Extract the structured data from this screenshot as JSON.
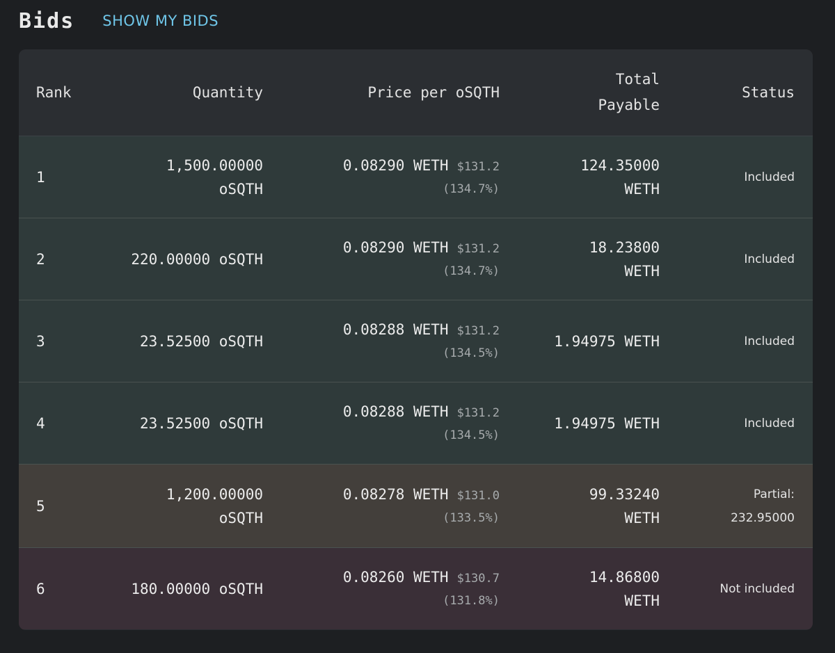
{
  "header": {
    "title": "Bids",
    "show_my_bids": "SHOW MY BIDS"
  },
  "columns": {
    "rank": "Rank",
    "quantity": "Quantity",
    "price": "Price per oSQTH",
    "total_line1": "Total",
    "total_line2": "Payable",
    "status": "Status"
  },
  "rows": [
    {
      "rank": "1",
      "qty_line1": "1,500.00000",
      "qty_line2": "oSQTH",
      "price_weth": "0.08290 WETH",
      "price_usd": "$131.2",
      "price_pct": "(134.7%)",
      "total_line1": "124.35000",
      "total_line2": "WETH",
      "status_line1": "Included",
      "status_line2": ""
    },
    {
      "rank": "2",
      "qty_line1": "220.00000 oSQTH",
      "qty_line2": "",
      "price_weth": "0.08290 WETH",
      "price_usd": "$131.2",
      "price_pct": "(134.7%)",
      "total_line1": "18.23800",
      "total_line2": "WETH",
      "status_line1": "Included",
      "status_line2": ""
    },
    {
      "rank": "3",
      "qty_line1": "23.52500 oSQTH",
      "qty_line2": "",
      "price_weth": "0.08288 WETH",
      "price_usd": "$131.2",
      "price_pct": "(134.5%)",
      "total_line1": "1.94975 WETH",
      "total_line2": "",
      "status_line1": "Included",
      "status_line2": ""
    },
    {
      "rank": "4",
      "qty_line1": "23.52500 oSQTH",
      "qty_line2": "",
      "price_weth": "0.08288 WETH",
      "price_usd": "$131.2",
      "price_pct": "(134.5%)",
      "total_line1": "1.94975 WETH",
      "total_line2": "",
      "status_line1": "Included",
      "status_line2": ""
    },
    {
      "rank": "5",
      "qty_line1": "1,200.00000",
      "qty_line2": "oSQTH",
      "price_weth": "0.08278 WETH",
      "price_usd": "$131.0",
      "price_pct": "(133.5%)",
      "total_line1": "99.33240",
      "total_line2": "WETH",
      "status_line1": "Partial:",
      "status_line2": "232.95000"
    },
    {
      "rank": "6",
      "qty_line1": "180.00000 oSQTH",
      "qty_line2": "",
      "price_weth": "0.08260 WETH",
      "price_usd": "$130.7",
      "price_pct": "(131.8%)",
      "total_line1": "14.86800",
      "total_line2": "WETH",
      "status_line1": "Not included",
      "status_line2": ""
    }
  ],
  "colors": {
    "background": "#1d1f22",
    "header_row": "#2b2e32",
    "included_row": "#2f3a3a",
    "partial_row": "#433f3b",
    "not_included_row": "#3a2f37",
    "link": "#6fc5e8"
  }
}
